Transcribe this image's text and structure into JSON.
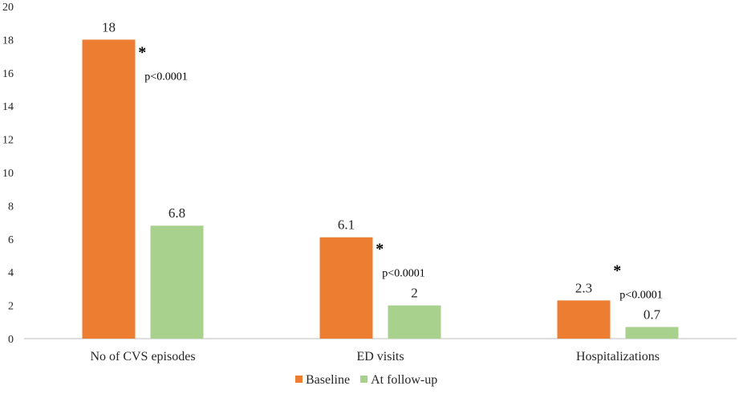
{
  "chart_data": {
    "type": "bar",
    "title": "",
    "xlabel": "",
    "ylabel": "",
    "ylim": [
      0,
      20
    ],
    "yticks": [
      0,
      2,
      4,
      6,
      8,
      10,
      12,
      14,
      16,
      18,
      20
    ],
    "grid": "none",
    "legend_position": "bottom",
    "categories": [
      "No of CVS episodes",
      "ED visits",
      "Hospitalizations"
    ],
    "series": [
      {
        "name": "Baseline",
        "color": "#ED7D31",
        "values": [
          18,
          6.1,
          2.3
        ],
        "labels": [
          "18",
          "6.1",
          "2.3"
        ]
      },
      {
        "name": "At follow-up",
        "color": "#A9D18E",
        "values": [
          6.8,
          2,
          0.7
        ],
        "labels": [
          "6.8",
          "2",
          "0.7"
        ]
      }
    ],
    "annotations": [
      {
        "category": 0,
        "marker": "*",
        "text": "p<0.0001"
      },
      {
        "category": 1,
        "marker": "*",
        "text": "p<0.0001"
      },
      {
        "category": 2,
        "marker": "*",
        "text": "p<0.0001"
      }
    ]
  }
}
